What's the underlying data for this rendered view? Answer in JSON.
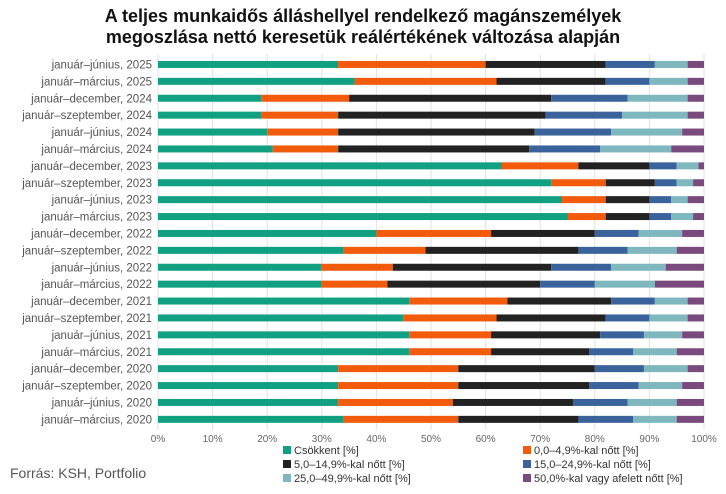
{
  "chart_data": {
    "type": "bar",
    "orientation": "horizontal",
    "stacked": "percent",
    "title_lines": [
      "A teljes munkaidős álláshellyel rendelkező magánszemélyek",
      "megoszlása nettó keresetük reálértékének változása alapján"
    ],
    "categories": [
      "január–június, 2025",
      "január–március, 2025",
      "január–december, 2024",
      "január–szeptember, 2024",
      "január–június, 2024",
      "január–március, 2024",
      "január–december, 2023",
      "január–szeptember, 2023",
      "január–június, 2023",
      "január–március, 2023",
      "január–december, 2022",
      "január–szeptember, 2022",
      "január–június, 2022",
      "január–március, 2022",
      "január–december, 2021",
      "január–szeptember, 2021",
      "január–június, 2021",
      "január–március, 2021",
      "január–december, 2020",
      "január–szeptember, 2020",
      "január–június, 2020",
      "január–március, 2020"
    ],
    "series": [
      {
        "name": "Csökkent [%]",
        "color": "#12a082",
        "values": [
          33,
          36,
          19,
          19,
          20,
          21,
          63,
          72,
          74,
          75,
          40,
          34,
          30,
          30,
          46,
          45,
          46,
          46,
          33,
          33,
          33,
          34
        ]
      },
      {
        "name": "0,0–4,9%-kal nőtt [%]",
        "color": "#f25a0c",
        "values": [
          27,
          26,
          16,
          14,
          13,
          12,
          14,
          10,
          8,
          7,
          21,
          15,
          13,
          12,
          18,
          17,
          15,
          15,
          22,
          22,
          21,
          21
        ]
      },
      {
        "name": "5,0–14,9%-kal nőtt [%]",
        "color": "#222222",
        "values": [
          22,
          20,
          37,
          38,
          36,
          35,
          13,
          9,
          8,
          8,
          19,
          28,
          29,
          28,
          19,
          20,
          20,
          18,
          25,
          24,
          22,
          22
        ]
      },
      {
        "name": "15,0–24,9%-kal nőtt [%]",
        "color": "#3a639c",
        "values": [
          9,
          8,
          14,
          14,
          14,
          13,
          5,
          4,
          4,
          4,
          8,
          9,
          11,
          10,
          8,
          8,
          8,
          8,
          9,
          9,
          10,
          10
        ]
      },
      {
        "name": "25,0–49,9%-kal nőtt [%]",
        "color": "#7eb7bd",
        "values": [
          6,
          7,
          11,
          12,
          13,
          13,
          4,
          3,
          3,
          4,
          8,
          9,
          10,
          11,
          6,
          7,
          7,
          8,
          8,
          8,
          9,
          8
        ]
      },
      {
        "name": "50,0%-kal vagy afelett nőtt [%]",
        "color": "#7a4a7f",
        "values": [
          3,
          3,
          3,
          3,
          4,
          6,
          1,
          2,
          3,
          2,
          4,
          5,
          7,
          9,
          3,
          3,
          4,
          5,
          3,
          4,
          5,
          5
        ]
      }
    ],
    "xlim": [
      0,
      100
    ],
    "xticks": [
      "0%",
      "10%",
      "20%",
      "30%",
      "40%",
      "50%",
      "60%",
      "70%",
      "80%",
      "90%",
      "100%"
    ],
    "legend_position": "bottom-right"
  },
  "source": "Forrás: KSH, Portfolio"
}
